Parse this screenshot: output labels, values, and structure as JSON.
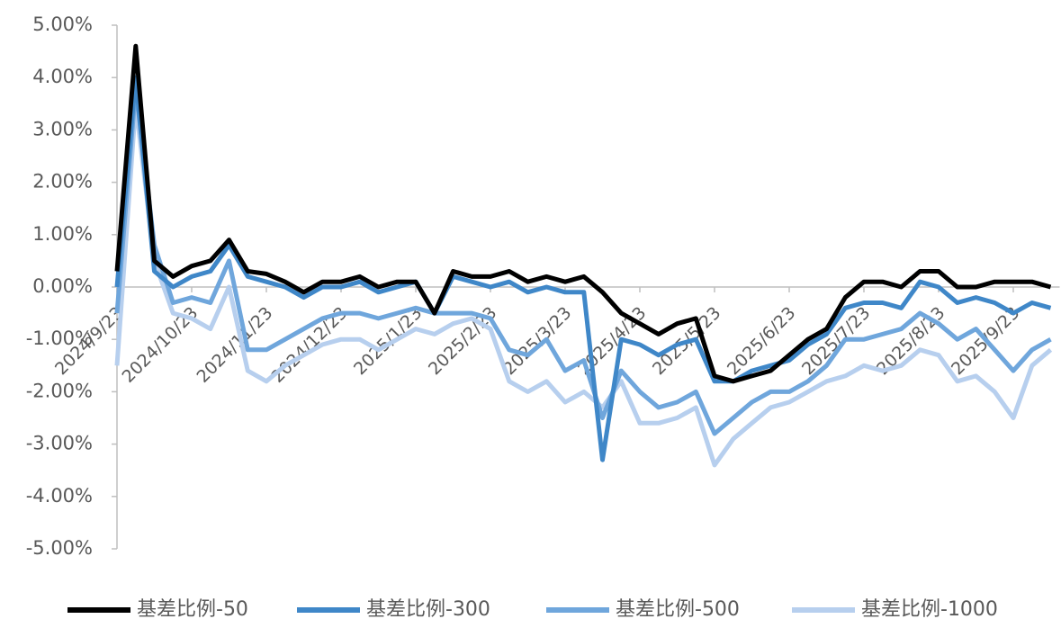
{
  "chart_data": {
    "type": "line",
    "categories": [
      "2024/9/23",
      null,
      null,
      null,
      "2024/10/23",
      null,
      null,
      null,
      "2024/11/23",
      null,
      null,
      null,
      "2024/12/23",
      null,
      null,
      null,
      "2025/1/23",
      null,
      null,
      null,
      "2025/2/23",
      null,
      null,
      null,
      "2025/3/23",
      null,
      null,
      null,
      "2025/4/23",
      null,
      null,
      null,
      "2025/5/23",
      null,
      null,
      null,
      "2025/6/23",
      null,
      null,
      null,
      "2025/7/23",
      null,
      null,
      null,
      "2025/8/23",
      null,
      null,
      null,
      "2025/9/23",
      null,
      null
    ],
    "series": [
      {
        "name": "基差比例-50",
        "color": "#000000",
        "values": [
          0.3,
          4.6,
          0.5,
          0.2,
          0.4,
          0.5,
          0.9,
          0.3,
          0.25,
          0.1,
          -0.1,
          0.1,
          0.1,
          0.2,
          0.0,
          0.1,
          0.1,
          -0.5,
          0.3,
          0.2,
          0.2,
          0.3,
          0.1,
          0.2,
          0.1,
          0.2,
          -0.1,
          -0.5,
          -0.7,
          -0.9,
          -0.7,
          -0.6,
          -1.7,
          -1.8,
          -1.7,
          -1.6,
          -1.3,
          -1.0,
          -0.8,
          -0.2,
          0.1,
          0.1,
          0.0,
          0.3,
          0.3,
          0.0,
          0.0,
          0.1,
          0.1,
          0.1,
          0.0
        ]
      },
      {
        "name": "基差比例-300",
        "color": "#3f87c8",
        "values": [
          0.0,
          4.0,
          0.3,
          0.0,
          0.2,
          0.3,
          0.8,
          0.2,
          0.1,
          0.0,
          -0.2,
          0.0,
          0.0,
          0.1,
          -0.1,
          0.0,
          0.1,
          -0.5,
          0.2,
          0.1,
          0.0,
          0.1,
          -0.1,
          0.0,
          -0.1,
          -0.1,
          -3.3,
          -1.0,
          -1.1,
          -1.3,
          -1.1,
          -1.0,
          -1.8,
          -1.8,
          -1.6,
          -1.5,
          -1.4,
          -1.1,
          -0.9,
          -0.4,
          -0.3,
          -0.3,
          -0.4,
          0.1,
          0.0,
          -0.3,
          -0.2,
          -0.3,
          -0.5,
          -0.3,
          -0.4
        ]
      },
      {
        "name": "基差比例-500",
        "color": "#6fa6dc",
        "values": [
          -0.5,
          3.8,
          0.8,
          -0.3,
          -0.2,
          -0.3,
          0.5,
          -1.2,
          -1.2,
          -1.0,
          -0.8,
          -0.6,
          -0.5,
          -0.5,
          -0.6,
          -0.5,
          -0.4,
          -0.5,
          -0.5,
          -0.5,
          -0.6,
          -1.2,
          -1.3,
          -1.0,
          -1.6,
          -1.4,
          -2.5,
          -1.6,
          -2.0,
          -2.3,
          -2.2,
          -2.0,
          -2.8,
          -2.5,
          -2.2,
          -2.0,
          -2.0,
          -1.8,
          -1.5,
          -1.0,
          -1.0,
          -0.9,
          -0.8,
          -0.5,
          -0.7,
          -1.0,
          -0.8,
          -1.2,
          -1.6,
          -1.2,
          -1.0
        ]
      },
      {
        "name": "基差比例-1000",
        "color": "#b7cfee",
        "values": [
          -1.5,
          3.5,
          0.5,
          -0.5,
          -0.6,
          -0.8,
          0.0,
          -1.6,
          -1.8,
          -1.5,
          -1.3,
          -1.1,
          -1.0,
          -1.0,
          -1.2,
          -1.0,
          -0.8,
          -0.9,
          -0.7,
          -0.6,
          -0.8,
          -1.8,
          -2.0,
          -1.8,
          -2.2,
          -2.0,
          -2.3,
          -1.8,
          -2.6,
          -2.6,
          -2.5,
          -2.3,
          -3.4,
          -2.9,
          -2.6,
          -2.3,
          -2.2,
          -2.0,
          -1.8,
          -1.7,
          -1.5,
          -1.6,
          -1.5,
          -1.2,
          -1.3,
          -1.8,
          -1.7,
          -2.0,
          -2.5,
          -1.5,
          -1.2
        ]
      }
    ],
    "ylim": [
      -5,
      5
    ],
    "yticks": [
      {
        "value": 5,
        "label": "5.00%"
      },
      {
        "value": 4,
        "label": "4.00%"
      },
      {
        "value": 3,
        "label": "3.00%"
      },
      {
        "value": 2,
        "label": "2.00%"
      },
      {
        "value": 1,
        "label": "1.00%"
      },
      {
        "value": 0,
        "label": "0.00%"
      },
      {
        "value": -1,
        "label": "-1.00%"
      },
      {
        "value": -2,
        "label": "-2.00%"
      },
      {
        "value": -3,
        "label": "-3.00%"
      },
      {
        "value": -4,
        "label": "-4.00%"
      },
      {
        "value": -5,
        "label": "-5.00%"
      }
    ],
    "grid": false,
    "legend": "bottom"
  }
}
